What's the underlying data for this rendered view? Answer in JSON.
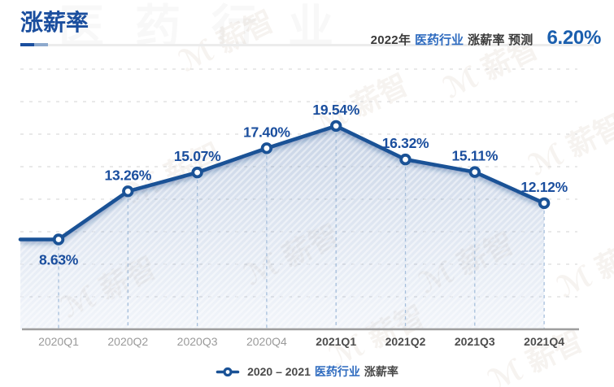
{
  "header": {
    "title": "涨薪率",
    "prediction": {
      "year_prefix": "2022年",
      "industry": "医药行业",
      "metric_label": "涨薪率 预测",
      "value": "6.20%"
    }
  },
  "legend": {
    "range": "2020 – 2021",
    "industry": "医药行业",
    "metric": "涨薪率"
  },
  "watermarks": {
    "big_text": "医药行业",
    "mark_text": "ℳ 薪智"
  },
  "colors": {
    "title": "#1a4e9e",
    "line": "#1a5296",
    "data_label": "#1a4e9e",
    "industry_link": "#2e6bbf",
    "prediction_value": "#1b5fae",
    "axis": "#9e9e9e",
    "grid": "#dcdcdc",
    "tick_default": "#9a9a9a",
    "tick_emphasis": "#4d4d4d",
    "drop_line": "#a5bedb",
    "area_top": "rgba(88,124,178,0.34)",
    "area_bottom": "rgba(150,175,215,0.13)"
  },
  "chart_data": {
    "type": "line",
    "title": "涨薪率",
    "series_name": "2020 – 2021 医药行业 涨薪率",
    "categories": [
      "2020Q1",
      "2020Q2",
      "2020Q3",
      "2020Q4",
      "2021Q1",
      "2021Q2",
      "2021Q3",
      "2021Q4"
    ],
    "values": [
      8.63,
      13.26,
      15.07,
      17.4,
      19.54,
      16.32,
      15.11,
      12.12
    ],
    "labels": [
      "8.63%",
      "13.26%",
      "15.07%",
      "17.40%",
      "19.54%",
      "16.32%",
      "15.11%",
      "12.12%"
    ],
    "label_positions": [
      "below",
      "above",
      "above",
      "above",
      "above",
      "above",
      "above",
      "above"
    ],
    "category_emphasis": [
      false,
      false,
      false,
      false,
      true,
      true,
      true,
      true
    ],
    "xlabel": "",
    "ylabel": "",
    "ylim": [
      0,
      25
    ],
    "grid": true,
    "legend_position": "bottom",
    "prediction": {
      "year": "2022年",
      "value": 6.2,
      "value_label": "6.20%"
    }
  }
}
